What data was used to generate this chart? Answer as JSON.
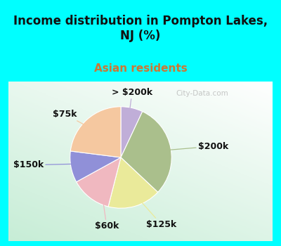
{
  "title": "Income distribution in Pompton Lakes,\nNJ (%)",
  "subtitle": "Asian residents",
  "title_color": "#111111",
  "subtitle_color": "#cc7733",
  "background_color": "#00FFFF",
  "labels": [
    "> $200k",
    "$200k",
    "$125k",
    "$60k",
    "$150k",
    "$75k"
  ],
  "sizes": [
    7,
    30,
    17,
    13,
    10,
    23
  ],
  "colors": [
    "#c0aed8",
    "#aabf8c",
    "#eaea9a",
    "#f0b8c0",
    "#9090d8",
    "#f5c8a0"
  ],
  "startangle": 90,
  "watermark": "City-Data.com",
  "label_font_size": 9,
  "title_font_size": 12,
  "subtitle_font_size": 11
}
